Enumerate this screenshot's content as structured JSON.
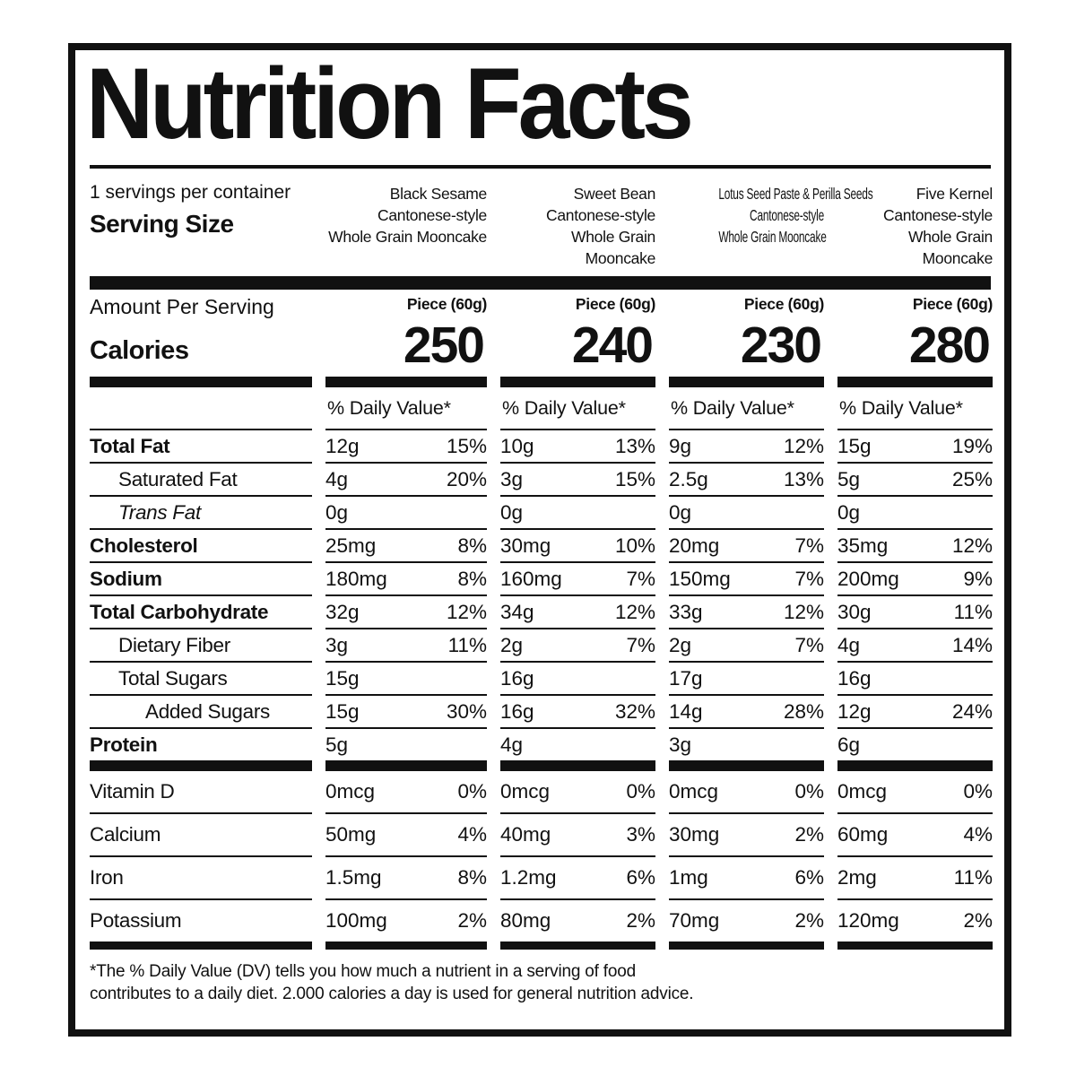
{
  "title": "Nutrition Facts",
  "servings_per_container": "1 servings per container",
  "serving_size_label": "Serving Size",
  "amount_per_serving_label": "Amount Per Serving",
  "calories_label": "Calories",
  "daily_value_header": "% Daily Value*",
  "footnote": {
    "line1": "*The % Daily Value (DV) tells you how much a nutrient in a serving of food",
    "line2": "contributes to a daily diet. 2.000 calories a day is used for general nutrition advice."
  },
  "colors": {
    "ink": "#111111",
    "paper": "#ffffff"
  },
  "columns": [
    {
      "name_lines": [
        "Black Sesame",
        "Cantonese-style",
        "Whole Grain Mooncake"
      ],
      "serving": "Piece (60g)",
      "calories": "250"
    },
    {
      "name_lines": [
        "Sweet Bean",
        "Cantonese-style",
        "Whole Grain Mooncake"
      ],
      "serving": "Piece (60g)",
      "calories": "240"
    },
    {
      "name_lines": [
        "Lotus Seed Paste & Perilla Seeds",
        "Cantonese-style",
        "Whole Grain Mooncake"
      ],
      "serving": "Piece (60g)",
      "calories": "230"
    },
    {
      "name_lines": [
        "Five Kernel",
        "Cantonese-style",
        "Whole Grain Mooncake"
      ],
      "serving": "Piece (60g)",
      "calories": "280"
    }
  ],
  "nutrients": [
    {
      "label": "Total Fat",
      "values": [
        {
          "amt": "12g",
          "dv": "15%"
        },
        {
          "amt": "10g",
          "dv": "13%"
        },
        {
          "amt": "9g",
          "dv": "12%"
        },
        {
          "amt": "15g",
          "dv": "19%"
        }
      ]
    },
    {
      "label": "Saturated Fat",
      "values": [
        {
          "amt": "4g",
          "dv": "20%"
        },
        {
          "amt": "3g",
          "dv": "15%"
        },
        {
          "amt": "2.5g",
          "dv": "13%"
        },
        {
          "amt": "5g",
          "dv": "25%"
        }
      ]
    },
    {
      "label": "Trans Fat",
      "values": [
        {
          "amt": "0g",
          "dv": ""
        },
        {
          "amt": "0g",
          "dv": ""
        },
        {
          "amt": "0g",
          "dv": ""
        },
        {
          "amt": "0g",
          "dv": ""
        }
      ]
    },
    {
      "label": "Cholesterol",
      "values": [
        {
          "amt": "25mg",
          "dv": "8%"
        },
        {
          "amt": "30mg",
          "dv": "10%"
        },
        {
          "amt": "20mg",
          "dv": "7%"
        },
        {
          "amt": "35mg",
          "dv": "12%"
        }
      ]
    },
    {
      "label": "Sodium",
      "values": [
        {
          "amt": "180mg",
          "dv": "8%"
        },
        {
          "amt": "160mg",
          "dv": "7%"
        },
        {
          "amt": "150mg",
          "dv": "7%"
        },
        {
          "amt": "200mg",
          "dv": "9%"
        }
      ]
    },
    {
      "label": "Total Carbohydrate",
      "values": [
        {
          "amt": "32g",
          "dv": "12%"
        },
        {
          "amt": "34g",
          "dv": "12%"
        },
        {
          "amt": "33g",
          "dv": "12%"
        },
        {
          "amt": "30g",
          "dv": "11%"
        }
      ]
    },
    {
      "label": "Dietary Fiber",
      "values": [
        {
          "amt": "3g",
          "dv": "11%"
        },
        {
          "amt": "2g",
          "dv": "7%"
        },
        {
          "amt": "2g",
          "dv": "7%"
        },
        {
          "amt": "4g",
          "dv": "14%"
        }
      ]
    },
    {
      "label": "Total Sugars",
      "values": [
        {
          "amt": "15g",
          "dv": ""
        },
        {
          "amt": "16g",
          "dv": ""
        },
        {
          "amt": "17g",
          "dv": ""
        },
        {
          "amt": "16g",
          "dv": ""
        }
      ]
    },
    {
      "label": "Added Sugars",
      "values": [
        {
          "amt": "15g",
          "dv": "30%"
        },
        {
          "amt": "16g",
          "dv": "32%"
        },
        {
          "amt": "14g",
          "dv": "28%"
        },
        {
          "amt": "12g",
          "dv": "24%"
        }
      ]
    },
    {
      "label": "Protein",
      "values": [
        {
          "amt": "5g",
          "dv": ""
        },
        {
          "amt": "4g",
          "dv": ""
        },
        {
          "amt": "3g",
          "dv": ""
        },
        {
          "amt": "6g",
          "dv": ""
        }
      ]
    }
  ],
  "vitamins": [
    {
      "label": "Vitamin D",
      "values": [
        {
          "amt": "0mcg",
          "dv": "0%"
        },
        {
          "amt": "0mcg",
          "dv": "0%"
        },
        {
          "amt": "0mcg",
          "dv": "0%"
        },
        {
          "amt": "0mcg",
          "dv": "0%"
        }
      ]
    },
    {
      "label": "Calcium",
      "values": [
        {
          "amt": "50mg",
          "dv": "4%"
        },
        {
          "amt": "40mg",
          "dv": "3%"
        },
        {
          "amt": "30mg",
          "dv": "2%"
        },
        {
          "amt": "60mg",
          "dv": "4%"
        }
      ]
    },
    {
      "label": "Iron",
      "values": [
        {
          "amt": "1.5mg",
          "dv": "8%"
        },
        {
          "amt": "1.2mg",
          "dv": "6%"
        },
        {
          "amt": "1mg",
          "dv": "6%"
        },
        {
          "amt": "2mg",
          "dv": "11%"
        }
      ]
    },
    {
      "label": "Potassium",
      "values": [
        {
          "amt": "100mg",
          "dv": "2%"
        },
        {
          "amt": "80mg",
          "dv": "2%"
        },
        {
          "amt": "70mg",
          "dv": "2%"
        },
        {
          "amt": "120mg",
          "dv": "2%"
        }
      ]
    }
  ]
}
